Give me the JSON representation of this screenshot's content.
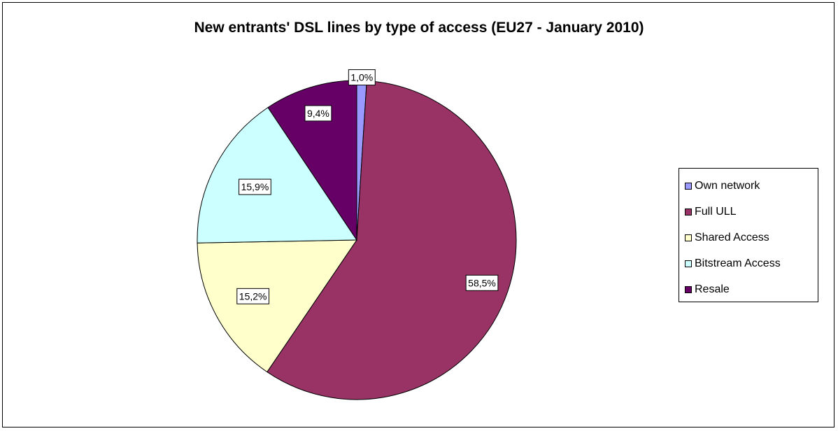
{
  "chart_data": {
    "type": "pie",
    "title": "New entrants' DSL lines by type of access (EU27 - January 2010)",
    "categories": [
      "Own network",
      "Full ULL",
      "Shared Access",
      "Bitstream Access",
      "Resale"
    ],
    "values": [
      1.0,
      58.5,
      15.2,
      15.9,
      9.4
    ],
    "value_labels": [
      "1,0%",
      "58,5%",
      "15,2%",
      "15,9%",
      "9,4%"
    ],
    "colors": [
      "#9999FF",
      "#993366",
      "#FFFFCC",
      "#CCFFFF",
      "#660066"
    ],
    "legend_position": "right"
  }
}
